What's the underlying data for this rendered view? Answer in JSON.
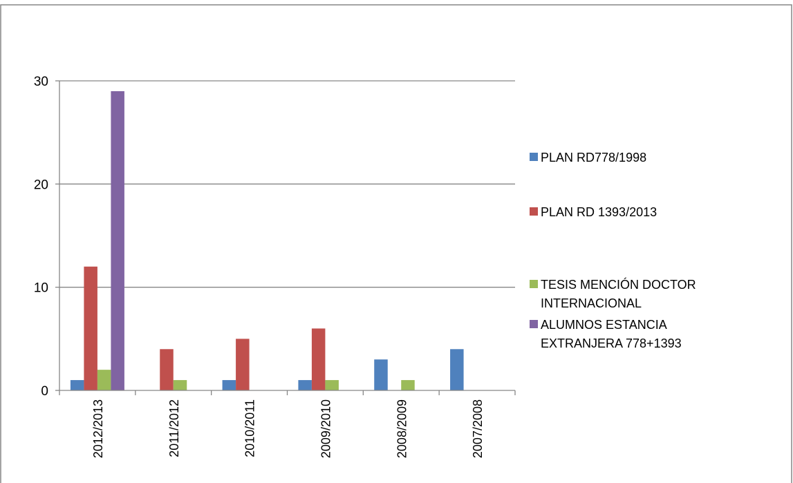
{
  "chart_data": {
    "type": "bar",
    "title": "",
    "xlabel": "",
    "ylabel": "",
    "categories": [
      "2012/2013",
      "2011/2012",
      "2010/2011",
      "2009/2010",
      "2008/2009",
      "2007/2008"
    ],
    "series": [
      {
        "name": "PLAN RD778/1998",
        "color": "#4f81bd",
        "values": [
          1,
          0,
          1,
          1,
          3,
          4
        ]
      },
      {
        "name": "PLAN RD 1393/2013",
        "color": "#c0504d",
        "values": [
          12,
          4,
          5,
          6,
          0,
          0
        ]
      },
      {
        "name": "TESIS MENCIÓN DOCTOR INTERNACIONAL",
        "color": "#9bbb59",
        "values": [
          2,
          1,
          0,
          1,
          1,
          0
        ]
      },
      {
        "name": "ALUMNOS ESTANCIA EXTRANJERA 778+1393",
        "color": "#8064a2",
        "values": [
          29,
          0,
          0,
          0,
          0,
          0
        ]
      }
    ],
    "ylim": [
      0,
      30
    ],
    "yticks": [
      0,
      10,
      20,
      30
    ],
    "grid": true,
    "legend_position": "right"
  },
  "legend": {
    "items": [
      {
        "lines": [
          "PLAN RD778/1998"
        ]
      },
      {
        "lines": [
          "PLAN RD 1393/2013"
        ]
      },
      {
        "lines": [
          "TESIS MENCIÓN DOCTOR",
          "INTERNACIONAL"
        ]
      },
      {
        "lines": [
          "ALUMNOS ESTANCIA",
          "EXTRANJERA 778+1393"
        ]
      }
    ]
  }
}
